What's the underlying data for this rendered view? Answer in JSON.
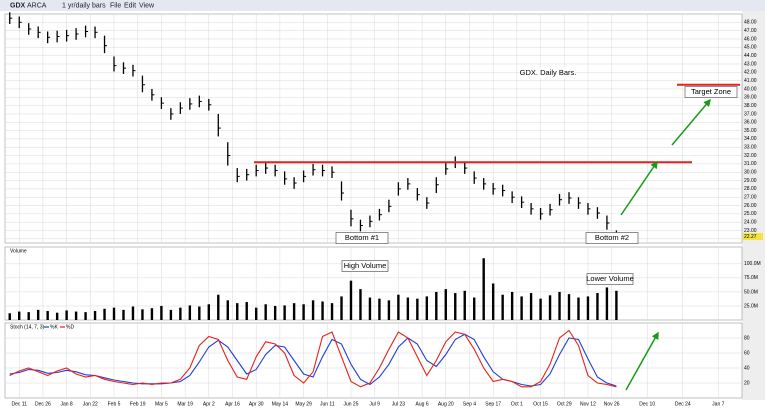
{
  "toolbar": [
    "GDX",
    "ARCA",
    "1 yr/daily bars",
    "File",
    "Edit",
    "View"
  ],
  "chart_data": [
    {
      "type": "ohlc",
      "annotations": [
        "GDX. Daily Bars.",
        "Target Zone",
        "Bottom #1",
        "Bottom #2"
      ],
      "levels": [
        31.2,
        40.5
      ],
      "last_price": 22.27,
      "x": [
        -4,
        0,
        4,
        8,
        12,
        16,
        20,
        24,
        28,
        32,
        36,
        40,
        44,
        48,
        52,
        56,
        60,
        64,
        68,
        72,
        76,
        80,
        84,
        88,
        92,
        96,
        100,
        104,
        108,
        112,
        116,
        120,
        124,
        128,
        132,
        136,
        140,
        144,
        148,
        152,
        156,
        160,
        164,
        168,
        172,
        176,
        180,
        184,
        188,
        192,
        196,
        200,
        204,
        208,
        212,
        216,
        220,
        224,
        228,
        232,
        236,
        240,
        244,
        248,
        252
      ],
      "high": [
        49.2,
        48.7,
        47.9,
        47.5,
        46.9,
        47.0,
        47.1,
        47.3,
        47.6,
        47.5,
        46.4,
        43.9,
        43.2,
        42.9,
        41.6,
        40.0,
        39.0,
        37.7,
        38.4,
        38.9,
        39.2,
        38.8,
        37.0,
        33.6,
        30.5,
        30.4,
        30.9,
        31.2,
        30.9,
        30.1,
        29.4,
        30.2,
        31.0,
        30.9,
        30.7,
        28.9,
        25.5,
        24.3,
        24.8,
        25.6,
        26.7,
        28.8,
        29.3,
        28.1,
        27.0,
        29.4,
        31.2,
        31.9,
        31.2,
        30.1,
        29.3,
        28.7,
        28.5,
        27.7,
        27.1,
        26.3,
        25.7,
        26.2,
        27.4,
        27.6,
        27.0,
        26.3,
        25.8,
        24.8,
        23.0
      ],
      "low": [
        47.8,
        47.3,
        46.5,
        46.1,
        45.5,
        45.6,
        45.7,
        45.9,
        46.2,
        46.1,
        44.3,
        42.1,
        41.8,
        41.5,
        39.6,
        38.6,
        37.6,
        36.3,
        37.0,
        37.5,
        37.8,
        37.4,
        34.3,
        30.8,
        28.8,
        29.0,
        29.5,
        29.8,
        29.5,
        28.5,
        28.0,
        28.8,
        29.6,
        29.5,
        29.3,
        26.6,
        23.5,
        22.9,
        23.4,
        24.2,
        25.2,
        27.2,
        27.9,
        26.6,
        25.6,
        27.5,
        29.7,
        30.5,
        29.8,
        28.6,
        27.9,
        27.3,
        27.1,
        26.3,
        25.7,
        24.9,
        24.3,
        24.8,
        26.0,
        26.2,
        25.6,
        24.9,
        24.4,
        23.1,
        21.9
      ],
      "close": [
        48.5,
        48,
        47.2,
        46.8,
        46.2,
        46.3,
        46.4,
        46.6,
        46.9,
        46.8,
        45.2,
        42.8,
        42.5,
        42.2,
        40.5,
        39.3,
        38.3,
        37,
        37.7,
        38.2,
        38.5,
        38.1,
        35.3,
        32,
        29.5,
        29.7,
        30.2,
        30.5,
        30.2,
        29.2,
        28.7,
        29.5,
        30.3,
        30.2,
        30,
        27.5,
        24.4,
        23.6,
        24.1,
        24.9,
        25.9,
        28,
        28.6,
        27.3,
        26.3,
        28.5,
        30.4,
        31.2,
        30.5,
        29.3,
        28.6,
        28,
        27.8,
        27,
        26.4,
        25.6,
        25,
        25.5,
        26.7,
        26.9,
        26.3,
        25.6,
        25.1,
        23.9,
        22.3
      ],
      "color": "#000000",
      "level_color": "#e8201c",
      "xlim": [
        -6,
        305
      ],
      "ylim": [
        21.5,
        49
      ],
      "yticks": [
        {
          "value": 22,
          "label": "22.00"
        },
        {
          "value": 23,
          "label": "23.00"
        },
        {
          "value": 24,
          "label": "24.00"
        },
        {
          "value": 25,
          "label": "25.00"
        },
        {
          "value": 26,
          "label": "26.00"
        },
        {
          "value": 27,
          "label": "27.00"
        },
        {
          "value": 28,
          "label": "28.00"
        },
        {
          "value": 29,
          "label": "29.00"
        },
        {
          "value": 30,
          "label": "30.00"
        },
        {
          "value": 31,
          "label": "31.00"
        },
        {
          "value": 32,
          "label": "32.00"
        },
        {
          "value": 33,
          "label": "33.00"
        },
        {
          "value": 34,
          "label": "34.00"
        },
        {
          "value": 35,
          "label": "35.00"
        },
        {
          "value": 36,
          "label": "36.00"
        },
        {
          "value": 37,
          "label": "37.00"
        },
        {
          "value": 38,
          "label": "38.00"
        },
        {
          "value": 39,
          "label": "39.00"
        },
        {
          "value": 40,
          "label": "40.00"
        },
        {
          "value": 41,
          "label": "41.00"
        },
        {
          "value": 42,
          "label": "42.00"
        },
        {
          "value": 43,
          "label": "43.00"
        },
        {
          "value": 44,
          "label": "44.00"
        },
        {
          "value": 45,
          "label": "45.00"
        },
        {
          "value": 46,
          "label": "46.00"
        },
        {
          "value": 47,
          "label": "47.00"
        },
        {
          "value": 48,
          "label": "48.00"
        }
      ],
      "grid": true
    },
    {
      "type": "bar",
      "title": "Volume",
      "annotations": [
        "High Volume",
        "Lower Volume"
      ],
      "x": [
        -4,
        0,
        4,
        8,
        12,
        16,
        20,
        24,
        28,
        32,
        36,
        40,
        44,
        48,
        52,
        56,
        60,
        64,
        68,
        72,
        76,
        80,
        84,
        88,
        92,
        96,
        100,
        104,
        108,
        112,
        116,
        120,
        124,
        128,
        132,
        136,
        140,
        144,
        148,
        152,
        156,
        160,
        164,
        168,
        172,
        176,
        180,
        184,
        188,
        192,
        196,
        200,
        204,
        208,
        212,
        216,
        220,
        224,
        228,
        232,
        236,
        240,
        244,
        248,
        252
      ],
      "values": [
        12000000,
        15000000,
        14000000,
        18000000,
        16000000,
        13000000,
        17000000,
        15000000,
        14000000,
        16000000,
        20000000,
        22000000,
        18000000,
        24000000,
        19000000,
        21000000,
        25000000,
        18000000,
        22000000,
        26000000,
        24000000,
        28000000,
        45000000,
        35000000,
        30000000,
        32000000,
        22000000,
        28000000,
        25000000,
        26000000,
        30000000,
        28000000,
        35000000,
        33000000,
        30000000,
        42000000,
        70000000,
        55000000,
        40000000,
        38000000,
        35000000,
        45000000,
        40000000,
        38000000,
        42000000,
        50000000,
        55000000,
        48000000,
        52000000,
        40000000,
        110000000,
        65000000,
        45000000,
        50000000,
        42000000,
        48000000,
        38000000,
        44000000,
        50000000,
        46000000,
        40000000,
        42000000,
        48000000,
        58000000,
        52000000
      ],
      "color": "#000000",
      "xlim": [
        -6,
        305
      ],
      "ylim": [
        0,
        130000000
      ],
      "yticks": [
        {
          "value": 25000000,
          "label": "25.0M"
        },
        {
          "value": 50000000,
          "label": "50.0M"
        },
        {
          "value": 75000000,
          "label": "75.0M"
        },
        {
          "value": 100000000,
          "label": "100.0M"
        }
      ],
      "grid": true
    },
    {
      "type": "line",
      "title": "Stoch (14, 7, 3)",
      "x": [
        -4,
        0,
        4,
        8,
        12,
        16,
        20,
        24,
        28,
        32,
        36,
        40,
        44,
        48,
        52,
        56,
        60,
        64,
        68,
        72,
        76,
        80,
        84,
        88,
        92,
        96,
        100,
        104,
        108,
        112,
        116,
        120,
        124,
        128,
        132,
        136,
        140,
        144,
        148,
        152,
        156,
        160,
        164,
        168,
        172,
        176,
        180,
        184,
        188,
        192,
        196,
        200,
        204,
        208,
        212,
        216,
        220,
        224,
        228,
        232,
        236,
        240,
        244,
        248,
        252
      ],
      "series": [
        {
          "name": "%K",
          "color": "#1f3fd6",
          "values": [
            32,
            34,
            38,
            37,
            33,
            34,
            37,
            35,
            31,
            30,
            27,
            24,
            22,
            20,
            19,
            19,
            19,
            20,
            22,
            30,
            48,
            68,
            77,
            68,
            50,
            32,
            38,
            58,
            70,
            68,
            50,
            32,
            28,
            55,
            78,
            72,
            45,
            25,
            18,
            28,
            45,
            68,
            80,
            72,
            50,
            42,
            58,
            78,
            85,
            78,
            55,
            35,
            25,
            22,
            18,
            16,
            18,
            32,
            58,
            80,
            78,
            52,
            28,
            20,
            16
          ]
        },
        {
          "name": "%D",
          "color": "#e8201c",
          "values": [
            30,
            36,
            40,
            35,
            30,
            36,
            40,
            32,
            28,
            30,
            25,
            22,
            20,
            18,
            20,
            18,
            20,
            20,
            25,
            40,
            70,
            82,
            78,
            50,
            28,
            25,
            55,
            75,
            72,
            60,
            30,
            20,
            35,
            82,
            88,
            55,
            22,
            15,
            20,
            40,
            65,
            88,
            80,
            55,
            30,
            50,
            75,
            88,
            85,
            65,
            40,
            22,
            25,
            22,
            15,
            15,
            22,
            45,
            80,
            90,
            70,
            30,
            20,
            18,
            15
          ]
        }
      ],
      "xlim": [
        -6,
        305
      ],
      "ylim": [
        0,
        100
      ],
      "yticks": [
        20,
        40,
        60,
        80
      ],
      "xticks": [
        {
          "value": 0,
          "label": "Dec 11"
        },
        {
          "value": 10,
          "label": "Dec 26"
        },
        {
          "value": 20,
          "label": "Jan 8"
        },
        {
          "value": 30,
          "label": "Jan 22"
        },
        {
          "value": 40,
          "label": "Feb 5"
        },
        {
          "value": 50,
          "label": "Feb 19"
        },
        {
          "value": 60,
          "label": "Mar 5"
        },
        {
          "value": 70,
          "label": "Mar 19"
        },
        {
          "value": 80,
          "label": "Apr 2"
        },
        {
          "value": 90,
          "label": "Apr 16"
        },
        {
          "value": 100,
          "label": "Apr 30"
        },
        {
          "value": 110,
          "label": "May 14"
        },
        {
          "value": 120,
          "label": "May 29"
        },
        {
          "value": 130,
          "label": "Jun 11"
        },
        {
          "value": 140,
          "label": "Jun 25"
        },
        {
          "value": 150,
          "label": "Jul 9"
        },
        {
          "value": 160,
          "label": "Jul 23"
        },
        {
          "value": 170,
          "label": "Aug 6"
        },
        {
          "value": 180,
          "label": "Aug 20"
        },
        {
          "value": 190,
          "label": "Sep 4"
        },
        {
          "value": 200,
          "label": "Sep 17"
        },
        {
          "value": 210,
          "label": "Oct 1"
        },
        {
          "value": 220,
          "label": "Oct 15"
        },
        {
          "value": 230,
          "label": "Oct 29"
        },
        {
          "value": 240,
          "label": "Nov 12"
        },
        {
          "value": 250,
          "label": "Nov 26"
        },
        {
          "value": 265,
          "label": "Dec 10"
        },
        {
          "value": 280,
          "label": "Dec 24"
        },
        {
          "value": 295,
          "label": "Jan 7"
        }
      ],
      "grid": true
    }
  ]
}
